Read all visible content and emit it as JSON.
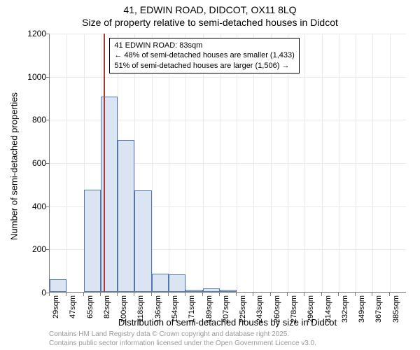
{
  "titles": {
    "main": "41, EDWIN ROAD, DIDCOT, OX11 8LQ",
    "sub": "Size of property relative to semi-detached houses in Didcot"
  },
  "axes": {
    "y_label": "Number of semi-detached properties",
    "x_label": "Distribution of semi-detached houses by size in Didcot"
  },
  "attribution": {
    "line1": "Contains HM Land Registry data © Crown copyright and database right 2025.",
    "line2": "Contains public sector information licensed under the Open Government Licence v3.0."
  },
  "chart": {
    "type": "histogram",
    "ylim": [
      0,
      1200
    ],
    "ytick_step": 200,
    "background_color": "#ffffff",
    "grid_color": "#e9e9e9",
    "axis_color": "#7f7f7f",
    "bar_fill": "#dbe4f2",
    "bar_border": "#4f78b3",
    "bar_width_ratio": 1.0,
    "x_categories": [
      "29sqm",
      "47sqm",
      "65sqm",
      "82sqm",
      "100sqm",
      "118sqm",
      "136sqm",
      "154sqm",
      "171sqm",
      "189sqm",
      "207sqm",
      "225sqm",
      "243sqm",
      "260sqm",
      "278sqm",
      "296sqm",
      "314sqm",
      "332sqm",
      "349sqm",
      "367sqm",
      "385sqm"
    ],
    "values": [
      60,
      0,
      475,
      905,
      705,
      470,
      85,
      80,
      10,
      15,
      10,
      0,
      0,
      0,
      0,
      0,
      0,
      0,
      0,
      0,
      0
    ],
    "marker": {
      "position_value": 83,
      "x_range": [
        29,
        385
      ],
      "color": "#ac3a39",
      "width": 2
    },
    "annotation": {
      "line1": "41 EDWIN ROAD: 83sqm",
      "line2": "← 48% of semi-detached houses are smaller (1,433)",
      "line3": "51% of semi-detached houses are larger (1,506) →",
      "border_color": "#000000",
      "bg_color": "#ffffff",
      "fontsize": 11
    }
  }
}
